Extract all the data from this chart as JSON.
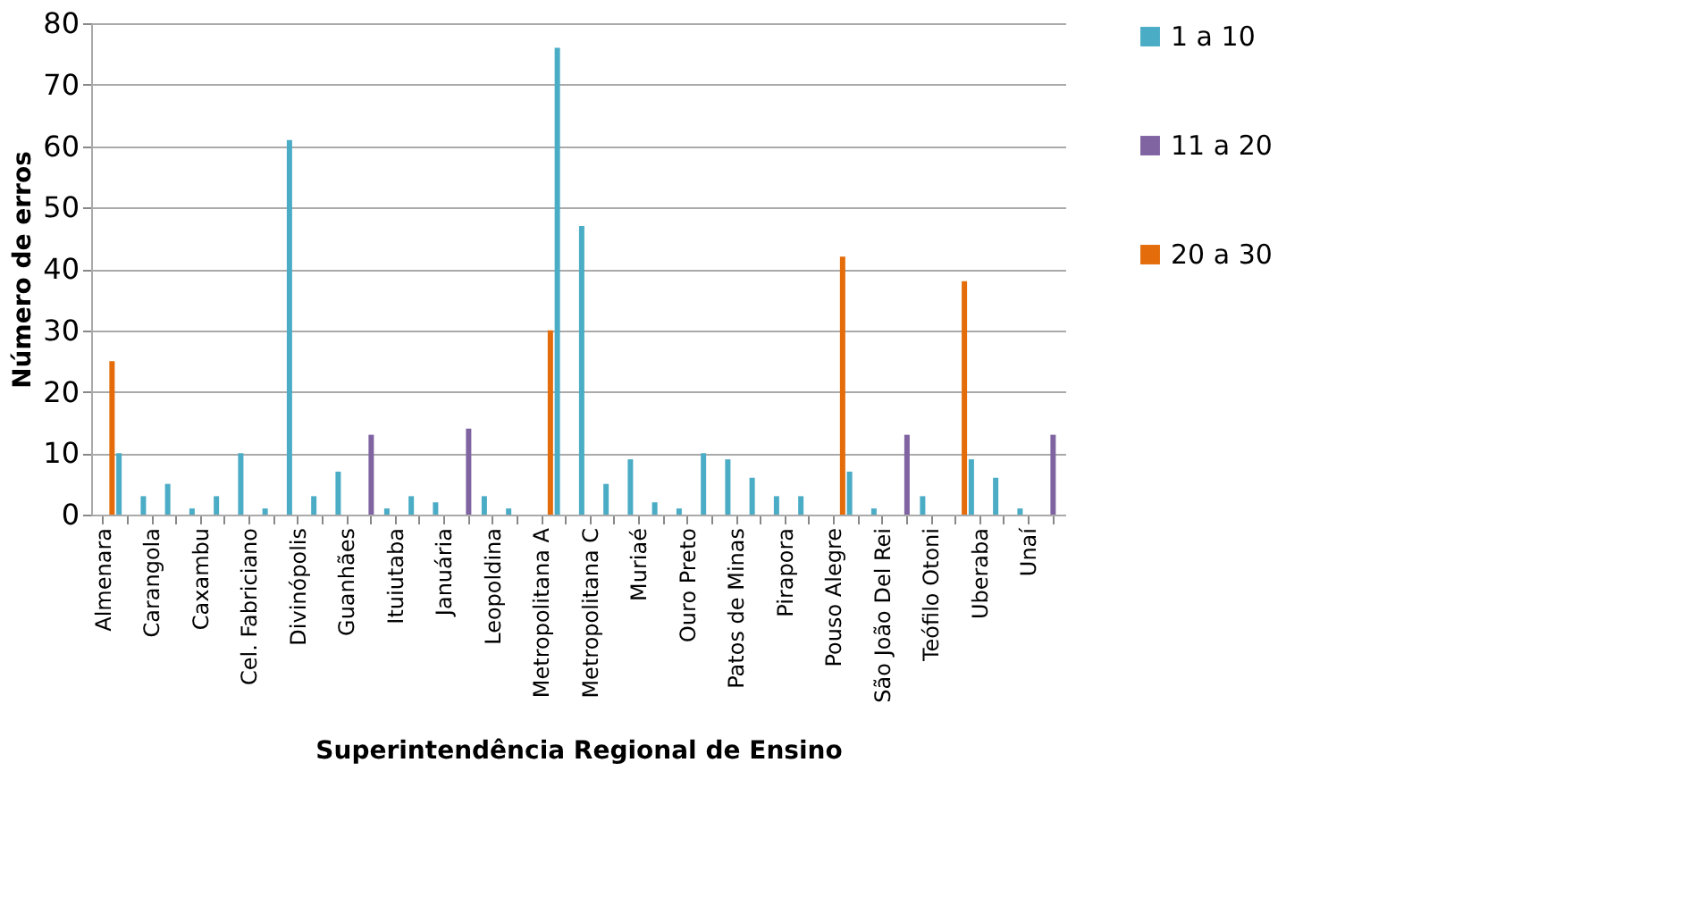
{
  "chart_data": {
    "type": "bar",
    "xlabel": "Superintendência Regional de Ensino",
    "ylabel": "Número de erros",
    "categories": [
      "Almenara",
      null,
      "Carangola",
      null,
      "Caxambu",
      null,
      "Cel. Fabriciano",
      null,
      "Divinópolis",
      null,
      "Guanhães",
      null,
      "Ituiutaba",
      null,
      "Januária",
      null,
      "Leopoldina",
      null,
      "Metropolitana A",
      null,
      "Metropolitana C",
      null,
      "Muriaé",
      null,
      "Ouro Preto",
      null,
      "Patos de Minas",
      null,
      "Pirapora",
      null,
      "Pouso Alegre",
      null,
      "São João Del Rei",
      null,
      "Teófilo Otoni",
      null,
      "Uberaba",
      null,
      "Unaí",
      null
    ],
    "series": [
      {
        "name": "1 a 10",
        "color": "#4bacc6",
        "values": [
          null,
          10,
          3,
          5,
          1,
          3,
          10,
          1,
          61,
          3,
          7,
          null,
          1,
          3,
          2,
          null,
          3,
          1,
          null,
          76,
          47,
          5,
          9,
          2,
          1,
          10,
          9,
          6,
          3,
          3,
          null,
          7,
          1,
          null,
          3,
          null,
          9,
          6,
          1,
          null
        ]
      },
      {
        "name": "11 a 20",
        "color": "#8064a2",
        "values": [
          null,
          null,
          null,
          null,
          null,
          null,
          null,
          null,
          null,
          null,
          null,
          13,
          null,
          null,
          null,
          14,
          null,
          null,
          null,
          null,
          null,
          null,
          null,
          null,
          null,
          null,
          null,
          null,
          null,
          null,
          null,
          null,
          null,
          13,
          null,
          null,
          null,
          null,
          null,
          13
        ]
      },
      {
        "name": "20 a 30",
        "color": "#e46c0a",
        "values": [
          25,
          null,
          null,
          null,
          null,
          null,
          null,
          null,
          null,
          null,
          null,
          null,
          null,
          null,
          null,
          null,
          null,
          null,
          30,
          null,
          null,
          null,
          null,
          null,
          null,
          null,
          null,
          null,
          null,
          null,
          42,
          null,
          null,
          null,
          null,
          38,
          null,
          null,
          null,
          null
        ]
      }
    ],
    "ylim": [
      0,
      80
    ],
    "yticks": [
      0,
      10,
      20,
      30,
      40,
      50,
      60,
      70,
      80
    ],
    "grid": "y",
    "legend": "right"
  }
}
